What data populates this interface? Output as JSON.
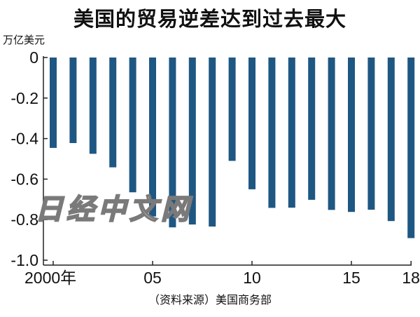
{
  "title": "美国的贸易逆差达到过去最大",
  "unit_label": "万亿美元",
  "source_note": "（资料来源）美国商务部",
  "watermark": "日经中文网",
  "colors": {
    "bar": "#1f5783",
    "axis": "#222222",
    "text": "#111111"
  },
  "chart_data": {
    "type": "bar",
    "title": "美国的贸易逆差达到过去最大",
    "ylabel": "万亿美元",
    "xlabel": "",
    "categories": [
      "2000",
      "2001",
      "2002",
      "2003",
      "2004",
      "2005",
      "2006",
      "2007",
      "2008",
      "2009",
      "2010",
      "2011",
      "2012",
      "2013",
      "2014",
      "2015",
      "2016",
      "2017",
      "2018"
    ],
    "values": [
      -0.446,
      -0.422,
      -0.475,
      -0.542,
      -0.665,
      -0.784,
      -0.838,
      -0.824,
      -0.834,
      -0.51,
      -0.65,
      -0.742,
      -0.741,
      -0.702,
      -0.752,
      -0.762,
      -0.751,
      -0.807,
      -0.891
    ],
    "ylim": [
      -1.0,
      0
    ],
    "y_ticks": [
      {
        "value": 0,
        "label": "0"
      },
      {
        "value": -0.2,
        "label": "-0.2"
      },
      {
        "value": -0.4,
        "label": "-0.4"
      },
      {
        "value": -0.6,
        "label": "-0.6"
      },
      {
        "value": -0.8,
        "label": "-0.8"
      },
      {
        "value": -1.0,
        "label": "-1.0"
      }
    ],
    "x_ticks": [
      {
        "index": 0,
        "label": "2000年"
      },
      {
        "index": 5,
        "label": "05"
      },
      {
        "index": 10,
        "label": "10"
      },
      {
        "index": 15,
        "label": "15"
      },
      {
        "index": 18,
        "label": "18"
      }
    ],
    "grid": false,
    "legend": "none"
  }
}
